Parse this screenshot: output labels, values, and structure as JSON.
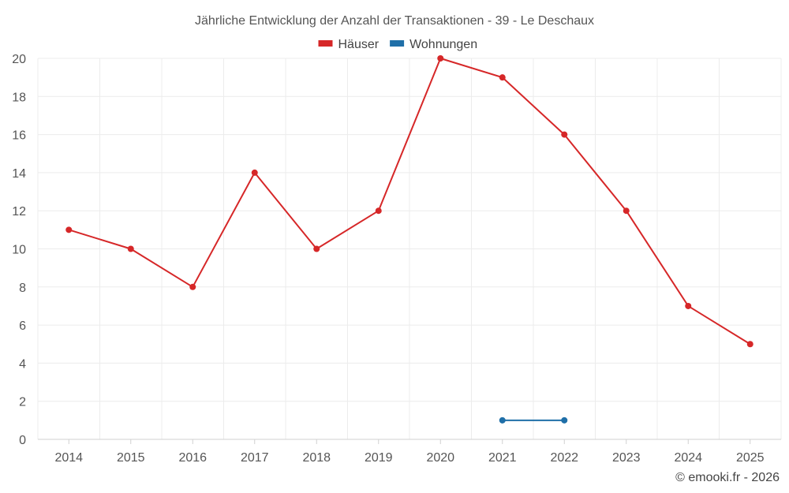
{
  "chart_data": {
    "type": "line",
    "title": "Jährliche Entwicklung der Anzahl der Transaktionen - 39 - Le Deschaux",
    "categories": [
      "2014",
      "2015",
      "2016",
      "2017",
      "2018",
      "2019",
      "2020",
      "2021",
      "2022",
      "2023",
      "2024",
      "2025"
    ],
    "ylim": [
      0,
      20
    ],
    "yticks": [
      0,
      2,
      4,
      6,
      8,
      10,
      12,
      14,
      16,
      18,
      20
    ],
    "grid": true,
    "legend_position": "top-center",
    "series": [
      {
        "name": "Häuser",
        "color": "#d62728",
        "values": [
          11,
          10,
          8,
          14,
          10,
          12,
          20,
          19,
          16,
          12,
          7,
          5
        ]
      },
      {
        "name": "Wohnungen",
        "color": "#1f6fa8",
        "values": [
          null,
          null,
          null,
          null,
          null,
          null,
          null,
          1,
          1,
          null,
          null,
          null
        ]
      }
    ]
  },
  "credit": "© emooki.fr - 2026"
}
